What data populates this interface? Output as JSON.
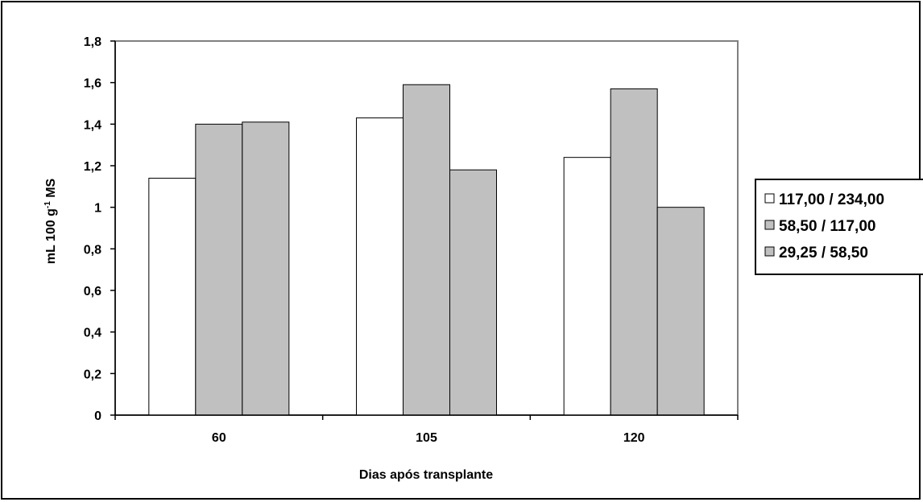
{
  "chart_data": {
    "type": "bar",
    "title": "",
    "xlabel": "Dias após transplante",
    "ylabel_main": "mL 100 g",
    "ylabel_sup": "-1",
    "ylabel_tail": " MS",
    "categories": [
      "60",
      "105",
      "120"
    ],
    "ylim": [
      0,
      1.8
    ],
    "yticks": [
      {
        "value": 0,
        "label": "0"
      },
      {
        "value": 0.2,
        "label": "0,2"
      },
      {
        "value": 0.4,
        "label": "0,4"
      },
      {
        "value": 0.6,
        "label": "0,6"
      },
      {
        "value": 0.8,
        "label": "0,8"
      },
      {
        "value": 1.0,
        "label": "1"
      },
      {
        "value": 1.2,
        "label": "1,2"
      },
      {
        "value": 1.4,
        "label": "1,4"
      },
      {
        "value": 1.6,
        "label": "1,6"
      },
      {
        "value": 1.8,
        "label": "1,8"
      }
    ],
    "grid": false,
    "legend_position": "right",
    "series": [
      {
        "name": "117,00 / 234,00",
        "color": "#ffffff",
        "values": [
          1.14,
          1.43,
          1.24
        ]
      },
      {
        "name": "58,50 / 117,00",
        "color": "#c0c0c0",
        "values": [
          1.4,
          1.59,
          1.57
        ]
      },
      {
        "name": "29,25 / 58,50",
        "color": "#c0c0c0",
        "values": [
          1.41,
          1.18,
          1.0
        ]
      }
    ]
  }
}
